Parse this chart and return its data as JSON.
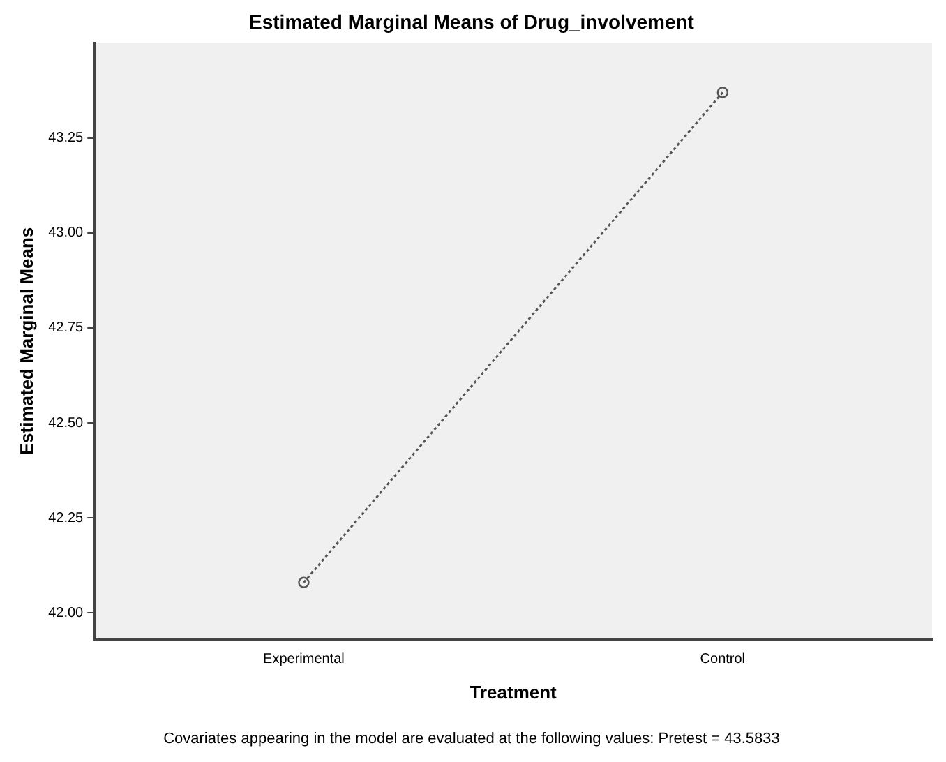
{
  "chart_data": {
    "type": "line",
    "title": "Estimated Marginal Means of Drug_involvement",
    "xlabel": "Treatment",
    "ylabel": "Estimated Marginal Means",
    "categories": [
      "Experimental",
      "Control"
    ],
    "series": [
      {
        "color": "#555555",
        "values": [
          42.08,
          43.37
        ]
      }
    ],
    "ylim": [
      41.93,
      43.5
    ],
    "yticks": [
      {
        "value": 42,
        "label": "42.00"
      },
      {
        "value": 42.25,
        "label": "42.25"
      },
      {
        "value": 42.5,
        "label": "42.50"
      },
      {
        "value": 42.75,
        "label": "42.75"
      },
      {
        "value": 43,
        "label": "43.00"
      },
      {
        "value": 43.25,
        "label": "43.25"
      }
    ],
    "marker": "circle",
    "line_style": "dotted",
    "grid": false,
    "legend": false,
    "annotations": [
      "Covariates appearing in the model are evaluated at the following values: Pretest = 43.5833"
    ]
  }
}
